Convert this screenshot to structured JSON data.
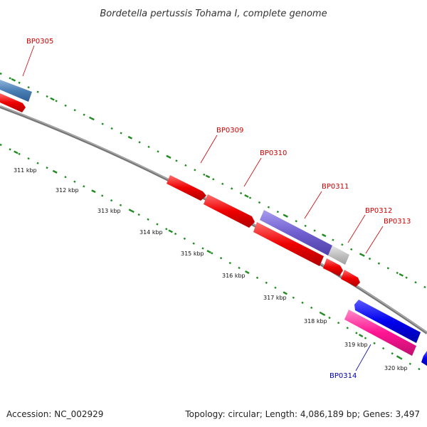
{
  "title": "Bordetella pertussis Tohama I, complete genome",
  "footer": {
    "accession": "Accession: NC_002929",
    "summary": "Topology: circular; Length: 4,086,189 bp; Genes: 3,497"
  },
  "colors": {
    "backbone": "#888888",
    "tick": "#228B22",
    "red": "#ee0000",
    "steelblue": "#4a7fb5",
    "slateblue": "#7060d0",
    "gray": "#c0c0c0",
    "blue": "#0000ee",
    "pink": "#ff1493",
    "label_red": "#cc0000",
    "label_blue": "#0000aa"
  },
  "scale_labels": [
    "311 kbp",
    "312 kbp",
    "313 kbp",
    "314 kbp",
    "315 kbp",
    "316 kbp",
    "317 kbp",
    "318 kbp",
    "319 kbp",
    "320 kbp"
  ],
  "gene_labels": [
    {
      "id": "bp0305",
      "text": "BP0305",
      "color": "red"
    },
    {
      "id": "bp0309",
      "text": "BP0309",
      "color": "red"
    },
    {
      "id": "bp0310",
      "text": "BP0310",
      "color": "red"
    },
    {
      "id": "bp0311",
      "text": "BP0311",
      "color": "red"
    },
    {
      "id": "bp0312",
      "text": "BP0312",
      "color": "red"
    },
    {
      "id": "bp0313",
      "text": "BP0313",
      "color": "red"
    },
    {
      "id": "bp0314",
      "text": "BP0314",
      "color": "blue"
    }
  ]
}
